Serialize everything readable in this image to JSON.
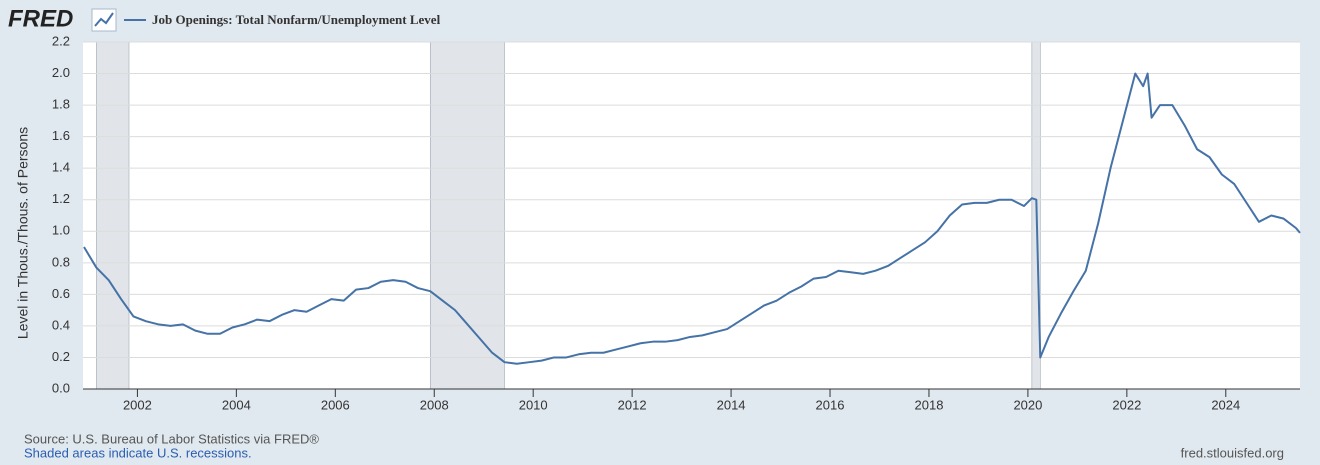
{
  "chart_data": {
    "type": "line",
    "brand": "FRED",
    "ylabel": "Level in Thous./Thous. of Persons",
    "source": "Source: U.S. Bureau of Labor Statistics via FRED®",
    "note": "Shaded areas indicate U.S. recessions.",
    "credit": "fred.stlouisfed.org",
    "xlim": [
      2000.9,
      2025.5
    ],
    "xticks": [
      2002,
      2004,
      2006,
      2008,
      2010,
      2012,
      2014,
      2016,
      2018,
      2020,
      2022,
      2024
    ],
    "ylim": [
      0,
      2.2
    ],
    "yticks": [
      {
        "value": 0,
        "label": "0.0"
      },
      0.2,
      0.4,
      0.6,
      0.8,
      {
        "value": 1,
        "label": "1.0"
      },
      1.2,
      1.4,
      1.6,
      1.8,
      {
        "value": 2,
        "label": "2.0"
      },
      2.2
    ],
    "grid": true,
    "recessions": [
      [
        2001.17,
        2001.83
      ],
      [
        2007.92,
        2009.42
      ],
      [
        2020.08,
        2020.25
      ]
    ],
    "recession_color": "#e1e5ea",
    "x": [
      2000.92,
      2001.17,
      2001.42,
      2001.67,
      2001.92,
      2002.17,
      2002.42,
      2002.67,
      2002.92,
      2003.17,
      2003.42,
      2003.67,
      2003.92,
      2004.17,
      2004.42,
      2004.67,
      2004.92,
      2005.17,
      2005.42,
      2005.67,
      2005.92,
      2006.17,
      2006.42,
      2006.67,
      2006.92,
      2007.17,
      2007.42,
      2007.67,
      2007.92,
      2008.17,
      2008.42,
      2008.67,
      2008.92,
      2009.17,
      2009.42,
      2009.67,
      2009.92,
      2010.17,
      2010.42,
      2010.67,
      2010.92,
      2011.17,
      2011.42,
      2011.67,
      2011.92,
      2012.17,
      2012.42,
      2012.67,
      2012.92,
      2013.17,
      2013.42,
      2013.67,
      2013.92,
      2014.17,
      2014.42,
      2014.67,
      2014.92,
      2015.17,
      2015.42,
      2015.67,
      2015.92,
      2016.17,
      2016.42,
      2016.67,
      2016.92,
      2017.17,
      2017.42,
      2017.67,
      2017.92,
      2018.17,
      2018.42,
      2018.67,
      2018.92,
      2019.17,
      2019.42,
      2019.67,
      2019.92,
      2020.08,
      2020.17,
      2020.25,
      2020.42,
      2020.67,
      2020.92,
      2021.17,
      2021.42,
      2021.67,
      2021.92,
      2022.17,
      2022.33,
      2022.42,
      2022.5,
      2022.67,
      2022.92,
      2023.17,
      2023.42,
      2023.67,
      2023.92,
      2024.17,
      2024.42,
      2024.67,
      2024.92,
      2025.17,
      2025.42,
      2025.5
    ],
    "series": [
      {
        "name": "Job Openings: Total Nonfarm/Unemployment Level",
        "color": "#4572a7",
        "values": [
          0.9,
          0.77,
          0.69,
          0.57,
          0.46,
          0.43,
          0.41,
          0.4,
          0.41,
          0.37,
          0.35,
          0.35,
          0.39,
          0.41,
          0.44,
          0.43,
          0.47,
          0.5,
          0.49,
          0.53,
          0.57,
          0.56,
          0.63,
          0.64,
          0.68,
          0.69,
          0.68,
          0.64,
          0.62,
          0.56,
          0.5,
          0.41,
          0.32,
          0.23,
          0.17,
          0.16,
          0.17,
          0.18,
          0.2,
          0.2,
          0.22,
          0.23,
          0.23,
          0.25,
          0.27,
          0.29,
          0.3,
          0.3,
          0.31,
          0.33,
          0.34,
          0.36,
          0.38,
          0.43,
          0.48,
          0.53,
          0.56,
          0.61,
          0.65,
          0.7,
          0.71,
          0.75,
          0.74,
          0.73,
          0.75,
          0.78,
          0.83,
          0.88,
          0.93,
          1.0,
          1.1,
          1.17,
          1.18,
          1.18,
          1.2,
          1.2,
          1.16,
          1.21,
          1.2,
          0.2,
          0.33,
          0.48,
          0.62,
          0.75,
          1.05,
          1.4,
          1.7,
          2.0,
          1.92,
          2.0,
          1.72,
          1.8,
          1.8,
          1.67,
          1.52,
          1.47,
          1.36,
          1.3,
          1.18,
          1.06,
          1.1,
          1.08,
          1.02,
          0.99
        ]
      }
    ]
  }
}
